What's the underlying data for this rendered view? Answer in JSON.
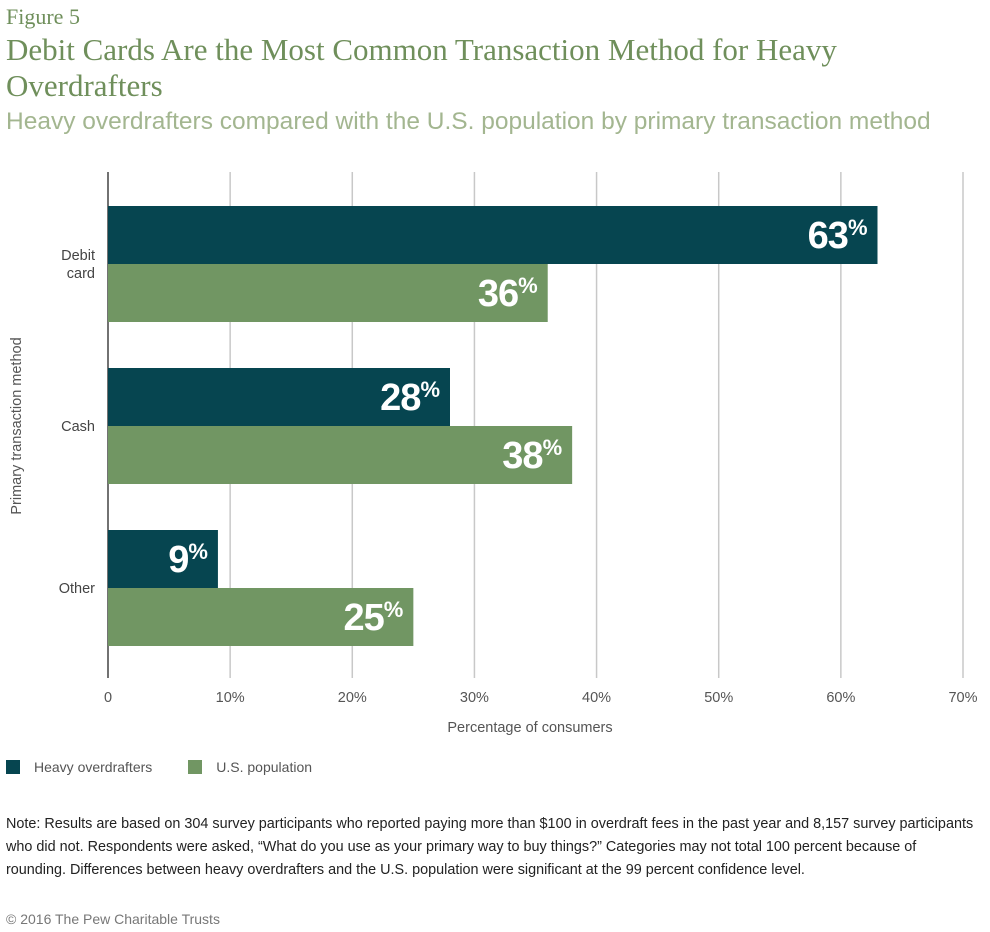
{
  "figure_label": "Figure 5",
  "title": "Debit Cards Are the Most Common Transaction Method for Heavy Overdrafters",
  "subtitle": "Heavy overdrafters compared with the U.S. population by primary transaction method",
  "colors": {
    "heavy_overdrafters": "#064550",
    "us_population": "#719663",
    "grid": "#c8c8c8",
    "axis_text": "#555555"
  },
  "chart_data": {
    "type": "bar",
    "orientation": "horizontal",
    "categories": [
      "Debit card",
      "Cash",
      "Other"
    ],
    "category_lines": [
      [
        "Debit",
        "card"
      ],
      [
        "Cash"
      ],
      [
        "Other"
      ]
    ],
    "series": [
      {
        "name": "Heavy overdrafters",
        "values": [
          63,
          28,
          9
        ],
        "labels": [
          "63",
          "28",
          "9"
        ]
      },
      {
        "name": "U.S. population",
        "values": [
          36,
          38,
          25
        ],
        "labels": [
          "36",
          "38",
          "25"
        ]
      }
    ],
    "value_suffix": "%",
    "xlim": [
      0,
      70
    ],
    "x_ticks": [
      "0",
      "10%",
      "20%",
      "30%",
      "40%",
      "50%",
      "60%",
      "70%"
    ],
    "xlabel": "Percentage of consumers",
    "ylabel": "Primary transaction method",
    "grid": true,
    "legend_position": "bottom-left"
  },
  "legend": {
    "items": [
      {
        "label": "Heavy overdrafters"
      },
      {
        "label": "U.S. population"
      }
    ]
  },
  "note": "Note: Results are based on 304 survey participants who reported paying more than $100 in overdraft fees in the past year and 8,157 survey participants who did not. Respondents were asked, “What do you use as your primary way to buy things?” Categories may not total 100 percent because of rounding. Differences between heavy overdrafters and the U.S. population were significant at the 99 percent confidence level.",
  "copyright": "© 2016 The Pew Charitable Trusts"
}
